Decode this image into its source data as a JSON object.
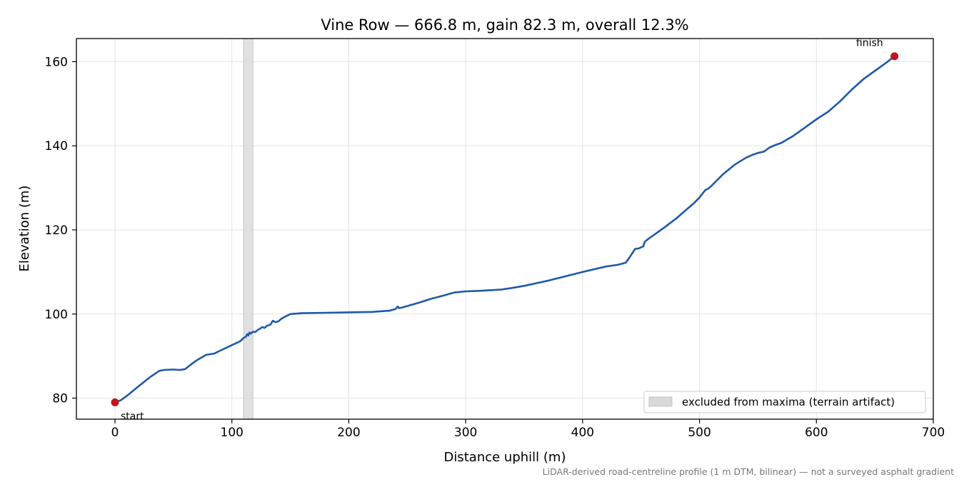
{
  "chart_data": {
    "type": "line",
    "title": "Vine Row — 666.8 m, gain 82.3 m, overall 12.3%",
    "xlabel": "Distance uphill (m)",
    "ylabel": "Elevation (m)",
    "xlim": [
      -33,
      700
    ],
    "ylim": [
      75,
      165.5
    ],
    "xticks": [
      0,
      100,
      200,
      300,
      400,
      500,
      600,
      700
    ],
    "yticks": [
      80,
      100,
      120,
      140,
      160
    ],
    "grid": true,
    "series": [
      {
        "color": "#1f5aa8",
        "x": [
          0,
          5,
          10,
          20,
          30,
          38,
          42,
          50,
          55,
          60,
          65,
          70,
          78,
          85,
          90,
          100,
          107,
          110,
          112,
          113,
          114,
          115,
          116,
          118,
          120,
          122,
          124,
          126,
          128,
          130,
          133,
          135,
          137,
          138,
          140,
          142,
          145,
          150,
          155,
          160,
          180,
          200,
          220,
          235,
          240,
          242,
          243,
          245,
          250,
          260,
          270,
          280,
          290,
          300,
          310,
          330,
          340,
          350,
          370,
          390,
          400,
          420,
          430,
          437,
          440,
          445,
          448,
          452,
          453,
          455,
          460,
          470,
          480,
          490,
          495,
          500,
          505,
          507,
          510,
          520,
          530,
          540,
          545,
          550,
          555,
          560,
          565,
          570,
          575,
          580,
          590,
          600,
          610,
          620,
          630,
          640,
          650,
          660,
          666.8
        ],
        "y": [
          79,
          79.5,
          80.5,
          82.8,
          85,
          86.5,
          86.7,
          86.8,
          86.7,
          86.9,
          88,
          89,
          90.3,
          90.6,
          91.3,
          92.6,
          93.5,
          94.3,
          94.6,
          95.2,
          94.9,
          95.6,
          95.3,
          95.8,
          95.7,
          96.2,
          96.5,
          96.9,
          96.7,
          97.2,
          97.5,
          98.4,
          98.1,
          98.1,
          98.3,
          98.8,
          99.3,
          100,
          100.1,
          100.2,
          100.3,
          100.4,
          100.5,
          100.8,
          101.2,
          101.8,
          101.4,
          101.5,
          101.9,
          102.7,
          103.6,
          104.3,
          105.1,
          105.4,
          105.5,
          105.8,
          106.2,
          106.7,
          107.9,
          109.3,
          110,
          111.3,
          111.7,
          112.2,
          113.4,
          115.5,
          115.6,
          116.1,
          117.1,
          117.6,
          118.6,
          120.6,
          122.7,
          125.1,
          126.3,
          127.7,
          129.5,
          129.7,
          130.4,
          133.2,
          135.5,
          137.2,
          137.8,
          138.3,
          138.6,
          139.6,
          140.2,
          140.7,
          141.5,
          142.3,
          144.3,
          146.3,
          148.1,
          150.5,
          153.3,
          155.8,
          157.8,
          159.8,
          161.3
        ]
      }
    ],
    "excluded_band": [
      110,
      118
    ],
    "markers": [
      {
        "x": 0,
        "y": 79,
        "label": "start",
        "color": "#c0141e"
      },
      {
        "x": 666.8,
        "y": 161.3,
        "label": "finish",
        "color": "#c0141e"
      }
    ],
    "legend": {
      "position": "lower-right",
      "entries": [
        "excluded from maxima (terrain artifact)"
      ]
    },
    "footnote": "LiDAR-derived road-centreline profile (1 m DTM, bilinear) — not a surveyed asphalt gradient"
  }
}
